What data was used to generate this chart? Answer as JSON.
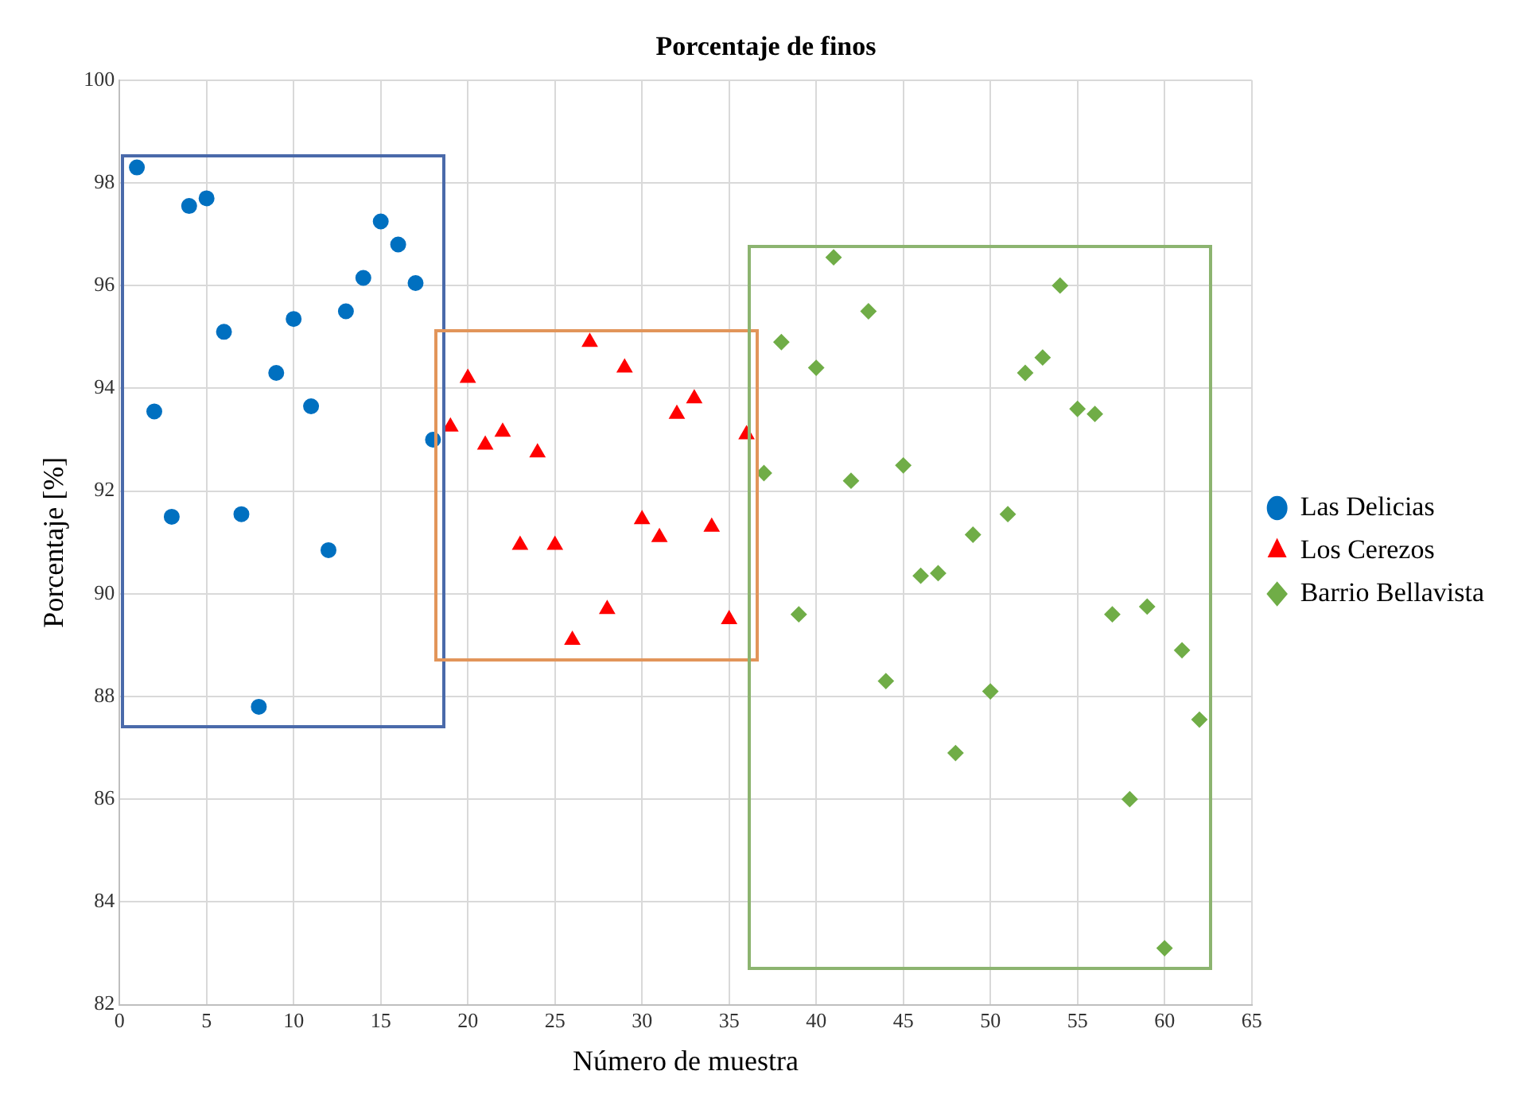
{
  "chart_data": {
    "type": "scatter",
    "title": "Porcentaje de finos",
    "xlabel": "Número de muestra",
    "ylabel": "Porcentaje [%]",
    "xlim": [
      0,
      65
    ],
    "xticks": [
      0,
      5,
      10,
      15,
      20,
      25,
      30,
      35,
      40,
      45,
      50,
      55,
      60,
      65
    ],
    "ylim": [
      82,
      100
    ],
    "yticks": [
      82,
      84,
      86,
      88,
      90,
      92,
      94,
      96,
      98,
      100
    ],
    "grid": true,
    "legend": "right",
    "series": [
      {
        "name": "Las Delicias",
        "color": "#0070c0",
        "marker": "circle",
        "x": [
          1,
          2,
          3,
          4,
          5,
          6,
          7,
          8,
          9,
          10,
          11,
          12,
          13,
          14,
          15,
          16,
          17,
          18
        ],
        "values": [
          98.3,
          93.55,
          91.5,
          97.55,
          97.7,
          95.1,
          91.55,
          87.8,
          94.3,
          95.35,
          93.65,
          90.85,
          95.5,
          96.15,
          97.25,
          96.8,
          96.05,
          93.0
        ]
      },
      {
        "name": "Los Cerezos",
        "color": "#ff0000",
        "marker": "triangle",
        "x": [
          19,
          20,
          21,
          22,
          23,
          24,
          25,
          26,
          27,
          28,
          29,
          30,
          31,
          32,
          33,
          34,
          35,
          36
        ],
        "values": [
          93.25,
          94.2,
          92.9,
          93.15,
          90.95,
          92.75,
          90.95,
          89.1,
          94.9,
          89.7,
          94.4,
          91.45,
          91.1,
          93.5,
          93.8,
          91.3,
          89.5,
          93.1
        ]
      },
      {
        "name": "Barrio Bellavista",
        "color": "#70ad47",
        "marker": "diamond",
        "x": [
          37,
          38,
          39,
          40,
          41,
          42,
          43,
          44,
          45,
          46,
          47,
          48,
          49,
          50,
          51,
          52,
          53,
          54,
          55,
          56,
          57,
          58,
          59,
          60,
          61,
          62
        ],
        "values": [
          92.35,
          94.9,
          89.6,
          94.4,
          96.55,
          92.2,
          95.5,
          88.3,
          92.5,
          90.35,
          90.4,
          86.9,
          91.15,
          88.1,
          91.55,
          94.3,
          94.6,
          96.0,
          93.6,
          93.5,
          89.6,
          86.0,
          89.75,
          83.1,
          88.9,
          87.55
        ]
      }
    ]
  }
}
